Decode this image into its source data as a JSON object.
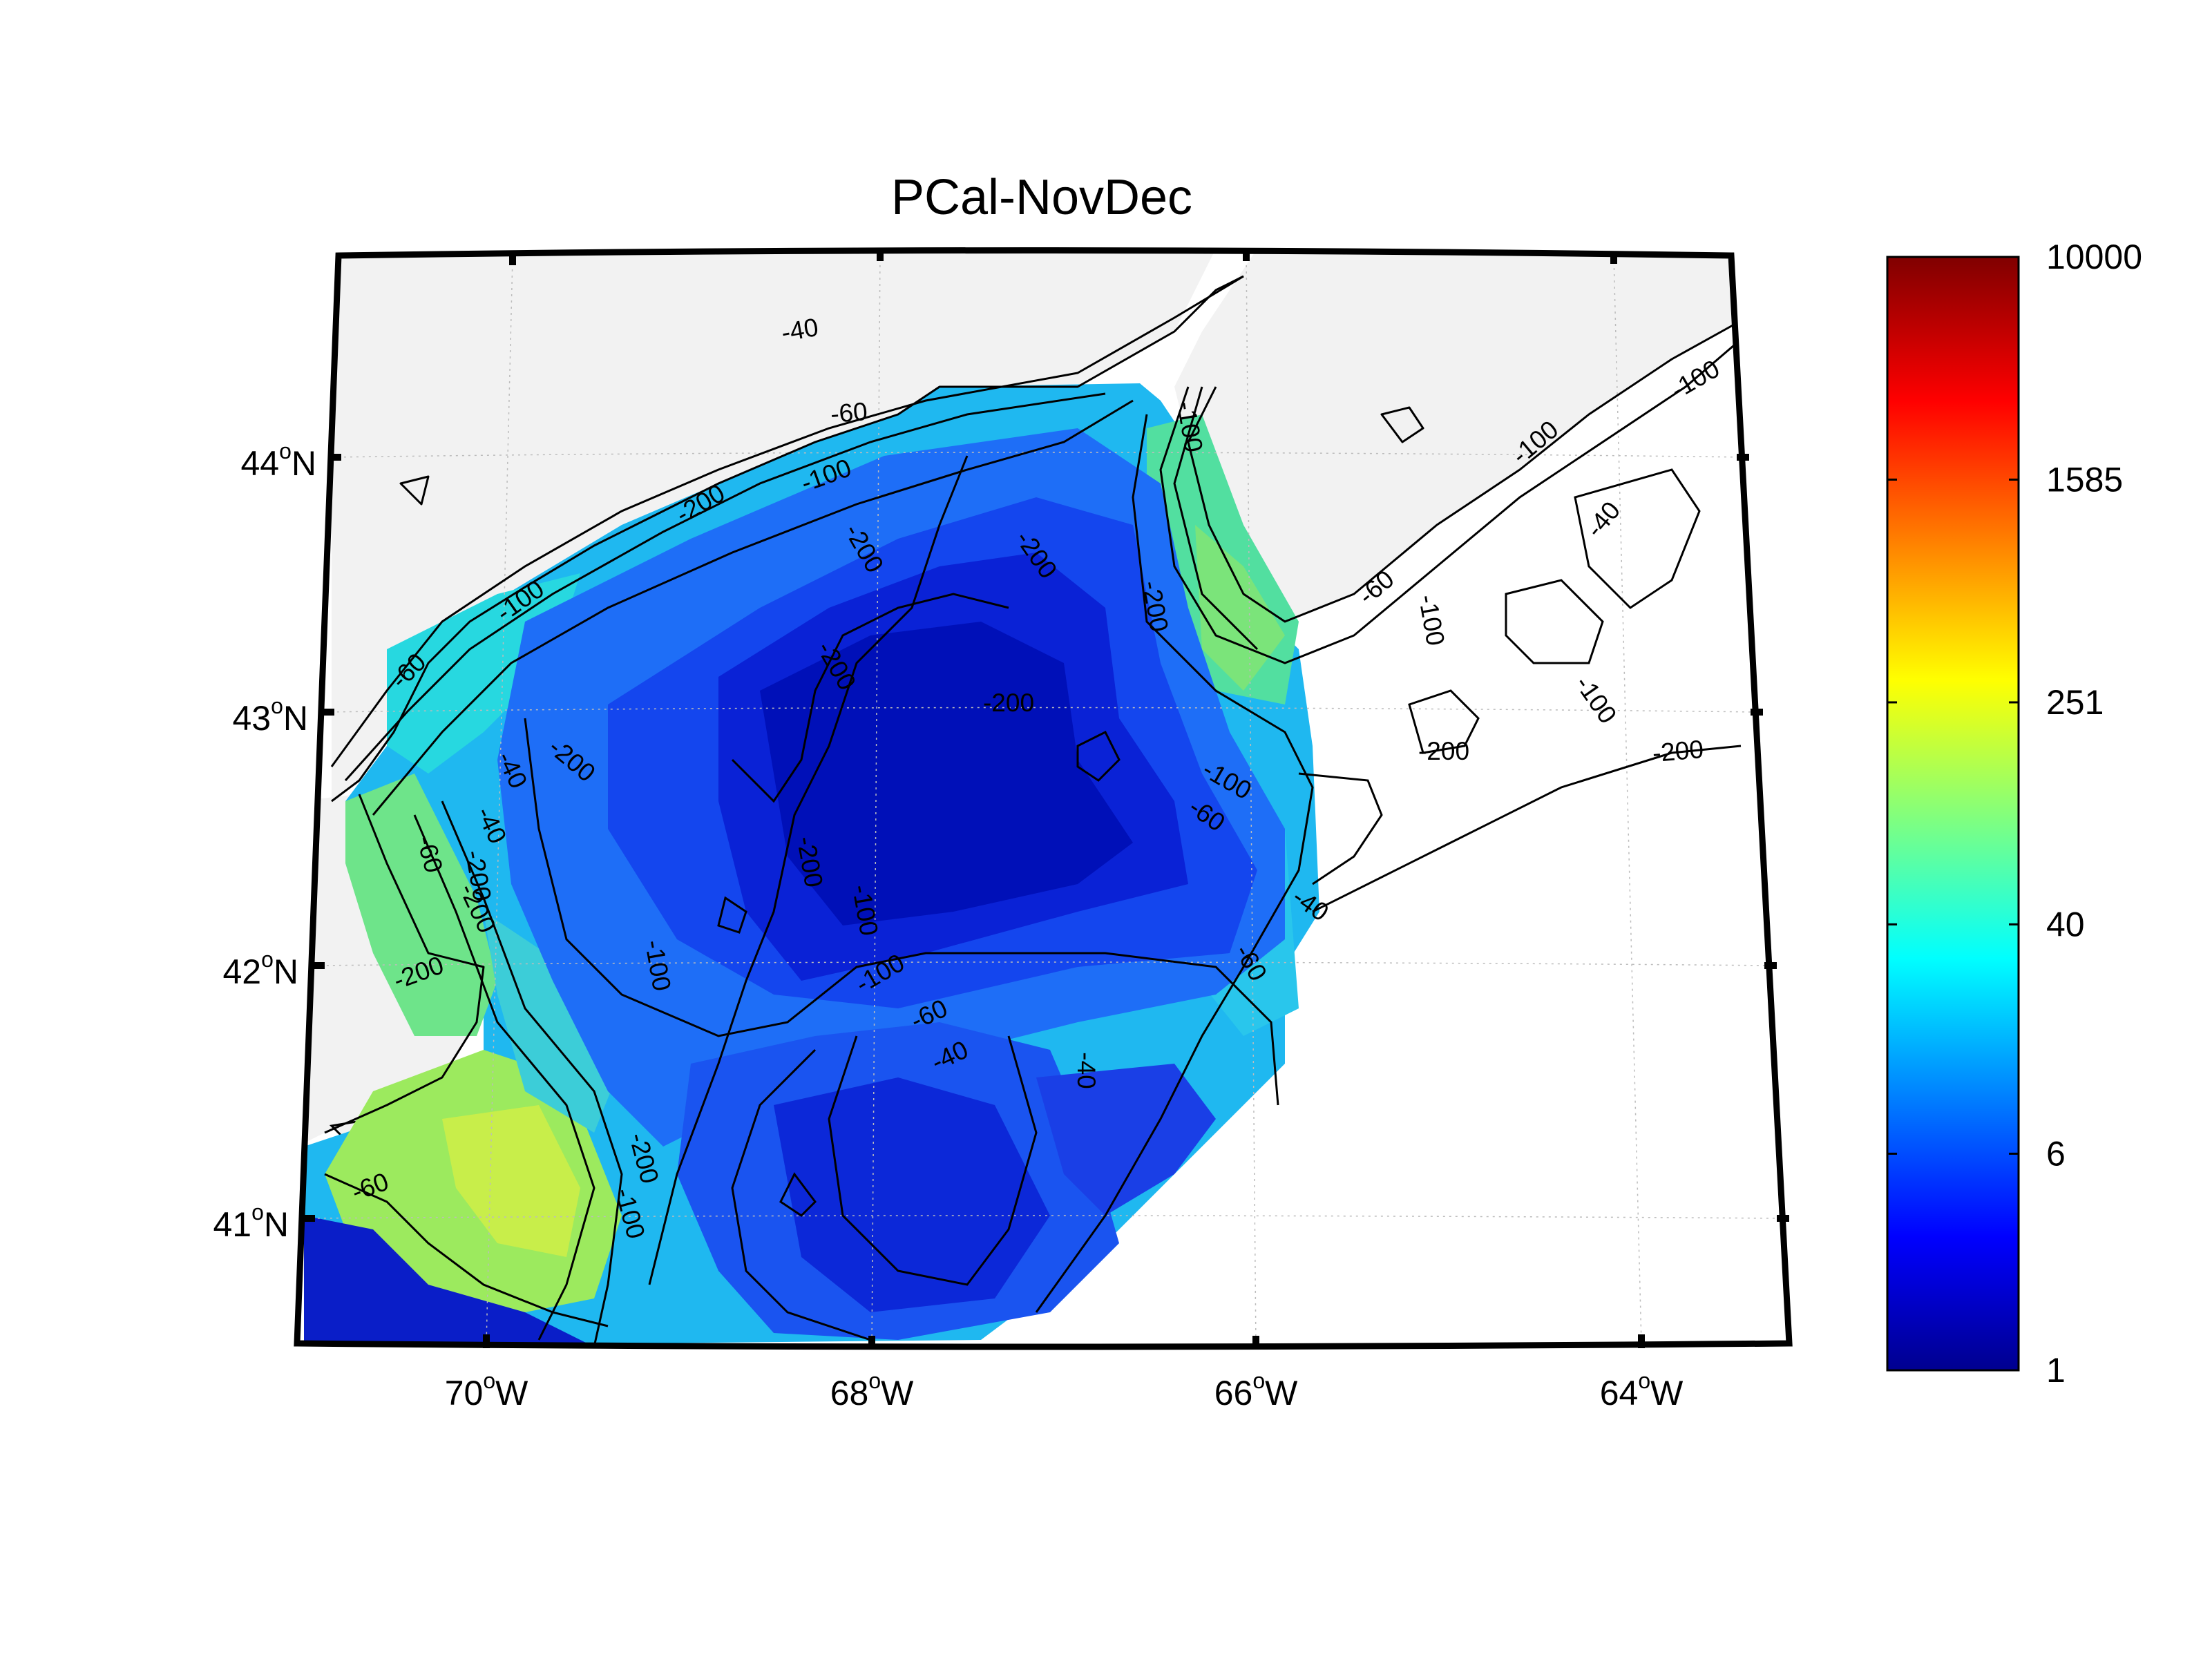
{
  "title": "PCal-NovDec",
  "map": {
    "lat_ticks": [
      {
        "value": 44,
        "deg": "44",
        "sup": "o",
        "hemi": "N"
      },
      {
        "value": 43,
        "deg": "43",
        "sup": "o",
        "hemi": "N"
      },
      {
        "value": 42,
        "deg": "42",
        "sup": "o",
        "hemi": "N"
      },
      {
        "value": 41,
        "deg": "41",
        "sup": "o",
        "hemi": "N"
      }
    ],
    "lon_ticks": [
      {
        "value": -70,
        "deg": "70",
        "sup": "o",
        "hemi": "W"
      },
      {
        "value": -68,
        "deg": "68",
        "sup": "o",
        "hemi": "W"
      },
      {
        "value": -66,
        "deg": "66",
        "sup": "o",
        "hemi": "W"
      },
      {
        "value": -64,
        "deg": "64",
        "sup": "o",
        "hemi": "W"
      }
    ],
    "grid": true,
    "land_color": "#f2f2f2",
    "contour_levels": [
      "-40",
      "-60",
      "-100",
      "-200"
    ],
    "contour_labels": [
      "-40",
      "-60",
      "-100",
      "-200",
      "-100",
      "-60",
      "-40",
      "-200",
      "-200",
      "-200",
      "-200",
      "-200",
      "-200",
      "-100",
      "-100",
      "-100",
      "-100",
      "-60",
      "-40",
      "-200",
      "-100",
      "-200",
      "-100",
      "-60",
      "-40",
      "-60",
      "-100",
      "-200",
      "-100",
      "-40",
      "-200",
      "-60",
      "-200",
      "-200",
      "-200",
      "-100",
      "-60",
      "-100",
      "-40",
      "-60",
      "-40"
    ]
  },
  "colorbar": {
    "scale": "log",
    "min": 1,
    "max": 10000,
    "tick_labels": [
      "10000",
      "1585",
      "251",
      "40",
      "6",
      "1"
    ],
    "colormap": "jet"
  }
}
